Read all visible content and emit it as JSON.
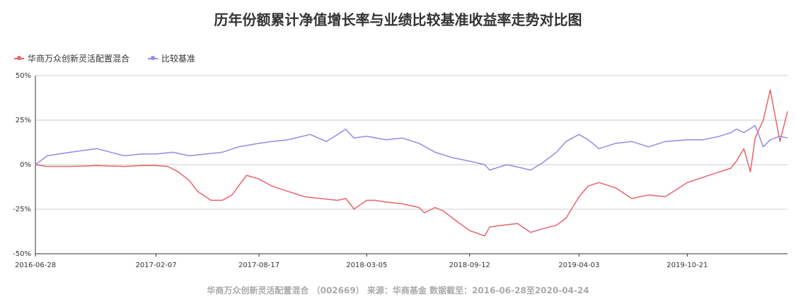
{
  "title": "历年份额累计净值增长率与业绩比较基准收益率走势对比图",
  "footer": "华商万众创新灵活配置混合 （002669） 来源：华商基金 数据截至：2016-06-28至2020-04-24",
  "colors": {
    "fund": "#e8636b",
    "benchmark": "#9b87e6",
    "grid": "#cccccc",
    "axis": "#333333"
  },
  "chart_data": {
    "type": "line",
    "title": "历年份额累计净值增长率与业绩比较基准收益率走势对比图",
    "ylabel": "",
    "xlabel": "",
    "ylim": [
      -50,
      50
    ],
    "yticks": [
      "50%",
      "25%",
      "0%",
      "-25%",
      "-50%"
    ],
    "ytick_values": [
      50,
      25,
      0,
      -25,
      -50
    ],
    "xlim": [
      "2016-06-28",
      "2020-04-24"
    ],
    "xticks": [
      "2016-06-28",
      "2017-02-07",
      "2017-08-17",
      "2018-03-05",
      "2018-09-12",
      "2019-04-03",
      "2019-10-21"
    ],
    "grid": "horizontal",
    "legend_position": "top-left",
    "series": [
      {
        "name": "华商万众创新灵活配置混合",
        "x": [
          "2016-06-28",
          "2016-07-20",
          "2016-09-01",
          "2016-10-20",
          "2016-12-10",
          "2017-01-10",
          "2017-02-07",
          "2017-03-01",
          "2017-03-20",
          "2017-04-10",
          "2017-04-25",
          "2017-05-20",
          "2017-06-10",
          "2017-06-28",
          "2017-07-10",
          "2017-07-25",
          "2017-08-17",
          "2017-09-10",
          "2017-10-10",
          "2017-11-10",
          "2017-12-10",
          "2018-01-10",
          "2018-01-25",
          "2018-02-05",
          "2018-02-09",
          "2018-03-05",
          "2018-03-20",
          "2018-04-10",
          "2018-05-10",
          "2018-06-10",
          "2018-06-20",
          "2018-07-10",
          "2018-07-25",
          "2018-08-20",
          "2018-09-12",
          "2018-10-10",
          "2018-10-19",
          "2018-11-10",
          "2018-12-10",
          "2019-01-03",
          "2019-01-25",
          "2019-02-20",
          "2019-03-10",
          "2019-04-03",
          "2019-04-20",
          "2019-05-10",
          "2019-06-10",
          "2019-07-10",
          "2019-08-10",
          "2019-09-10",
          "2019-10-21",
          "2019-11-20",
          "2019-12-20",
          "2020-01-10",
          "2020-01-20",
          "2020-02-03",
          "2020-02-15",
          "2020-02-24",
          "2020-03-10",
          "2020-03-23",
          "2020-04-10",
          "2020-04-24"
        ],
        "values": [
          0,
          -1,
          -1,
          -0.5,
          -1,
          -0.5,
          -0.5,
          -1,
          -4,
          -9,
          -15,
          -20,
          -20,
          -17,
          -12,
          -6,
          -8,
          -12,
          -15,
          -18,
          -19,
          -20,
          -19,
          -23,
          -25,
          -20,
          -20,
          -21,
          -22,
          -24,
          -27,
          -24,
          -26,
          -32,
          -37,
          -40,
          -35,
          -34,
          -33,
          -38,
          -36,
          -34,
          -30,
          -18,
          -12,
          -10,
          -13,
          -19,
          -17,
          -18,
          -10,
          -7,
          -4,
          -2,
          2,
          9,
          -4,
          15,
          25,
          42,
          13,
          30
        ]
      },
      {
        "name": "比较基准",
        "x": [
          "2016-06-28",
          "2016-07-20",
          "2016-09-01",
          "2016-10-20",
          "2016-12-10",
          "2017-01-10",
          "2017-02-07",
          "2017-03-10",
          "2017-04-10",
          "2017-05-10",
          "2017-06-10",
          "2017-07-10",
          "2017-08-17",
          "2017-09-10",
          "2017-10-10",
          "2017-11-20",
          "2017-12-20",
          "2018-01-10",
          "2018-01-25",
          "2018-02-09",
          "2018-03-05",
          "2018-04-10",
          "2018-05-10",
          "2018-06-10",
          "2018-07-10",
          "2018-08-10",
          "2018-09-12",
          "2018-10-10",
          "2018-10-19",
          "2018-11-20",
          "2018-12-20",
          "2019-01-03",
          "2019-01-25",
          "2019-02-20",
          "2019-03-10",
          "2019-04-03",
          "2019-04-20",
          "2019-05-10",
          "2019-06-10",
          "2019-07-10",
          "2019-08-10",
          "2019-09-10",
          "2019-10-21",
          "2019-11-20",
          "2019-12-20",
          "2020-01-10",
          "2020-01-20",
          "2020-02-03",
          "2020-02-24",
          "2020-03-10",
          "2020-03-23",
          "2020-04-10",
          "2020-04-24"
        ],
        "values": [
          0,
          5,
          7,
          9,
          5,
          6,
          6,
          7,
          5,
          6,
          7,
          10,
          12,
          13,
          14,
          17,
          13,
          17,
          20,
          15,
          16,
          14,
          15,
          12,
          7,
          4,
          2,
          0,
          -3,
          0,
          -2,
          -3,
          1,
          7,
          13,
          17,
          14,
          9,
          12,
          13,
          10,
          13,
          14,
          14,
          16,
          18,
          20,
          18,
          22,
          10,
          14,
          16,
          15
        ]
      }
    ]
  }
}
